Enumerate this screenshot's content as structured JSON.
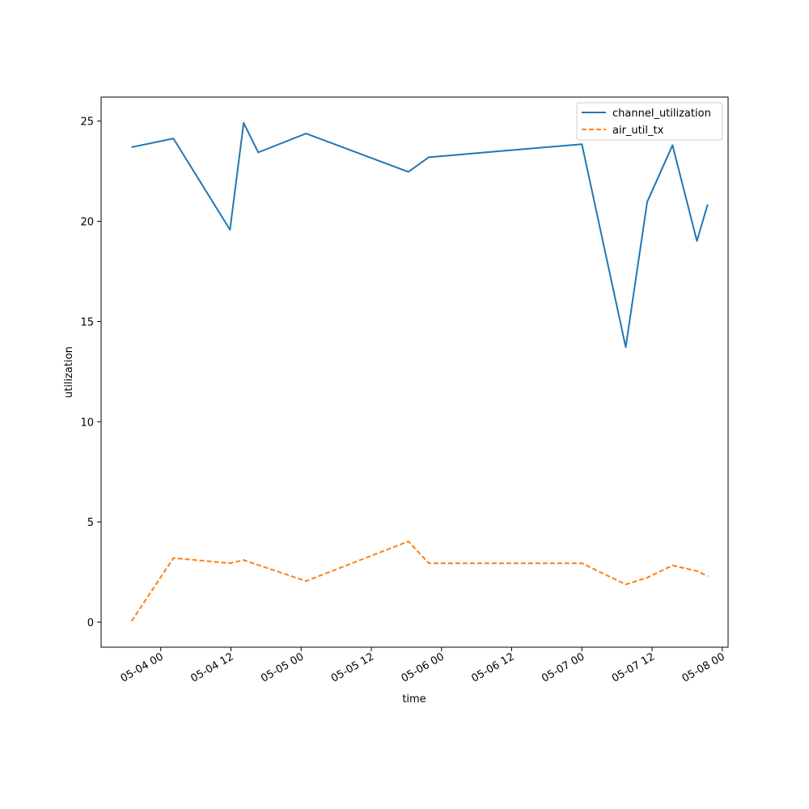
{
  "chart_data": {
    "type": "line",
    "xlabel": "time",
    "ylabel": "utilization",
    "xlim": [
      "2024-05-03T13:48",
      "2024-05-08T01:00"
    ],
    "ylim": [
      -1.25,
      26.2
    ],
    "x_ticks": [
      {
        "value": "2024-05-04T00:00",
        "label": "05-04 00"
      },
      {
        "value": "2024-05-04T12:00",
        "label": "05-04 12"
      },
      {
        "value": "2024-05-05T00:00",
        "label": "05-05 00"
      },
      {
        "value": "2024-05-05T12:00",
        "label": "05-05 12"
      },
      {
        "value": "2024-05-06T00:00",
        "label": "05-06 00"
      },
      {
        "value": "2024-05-06T12:00",
        "label": "05-06 12"
      },
      {
        "value": "2024-05-07T00:00",
        "label": "05-07 00"
      },
      {
        "value": "2024-05-07T12:00",
        "label": "05-07 12"
      },
      {
        "value": "2024-05-08T00:00",
        "label": "05-08 00"
      }
    ],
    "y_ticks": [
      0,
      5,
      10,
      15,
      20,
      25
    ],
    "grid": false,
    "legend_position": "top-right",
    "x": [
      "2024-05-03T19:00",
      "2024-05-04T02:10",
      "2024-05-04T11:50",
      "2024-05-04T14:10",
      "2024-05-04T16:40",
      "2024-05-05T00:50",
      "2024-05-05T18:20",
      "2024-05-05T21:50",
      "2024-05-07T00:00",
      "2024-05-07T07:30",
      "2024-05-07T11:10",
      "2024-05-07T15:30",
      "2024-05-07T19:40",
      "2024-05-07T21:30"
    ],
    "series": [
      {
        "name": "channel_utilization",
        "color": "#1f77b4",
        "style": "solid",
        "values": [
          23.7,
          24.13,
          19.58,
          24.91,
          23.44,
          24.38,
          22.47,
          23.2,
          23.85,
          13.72,
          20.97,
          23.8,
          19.02,
          20.84
        ]
      },
      {
        "name": "air_util_tx",
        "color": "#ff7f0e",
        "style": "dashed",
        "values": [
          0.05,
          3.2,
          2.94,
          3.1,
          2.85,
          2.05,
          4.03,
          2.94,
          2.94,
          1.88,
          2.22,
          2.83,
          2.55,
          2.3
        ]
      }
    ]
  }
}
